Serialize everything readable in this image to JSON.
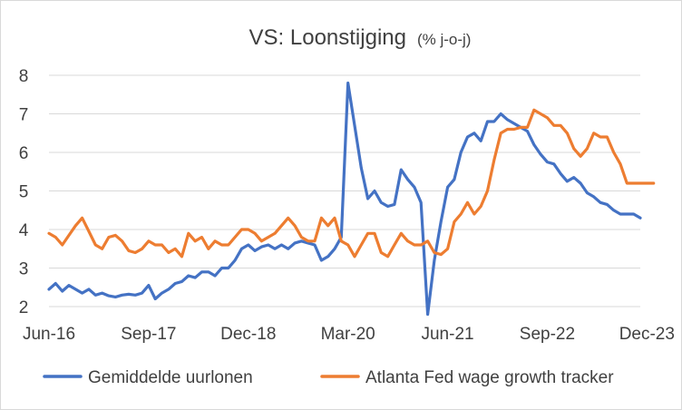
{
  "chart_data": {
    "type": "line",
    "title": "VS: Loonstijging",
    "subtitle": "(% j-o-j)",
    "xlabel": "",
    "ylabel": "",
    "ylim": [
      2,
      8
    ],
    "yticks": [
      "2",
      "3",
      "4",
      "5",
      "6",
      "7",
      "8"
    ],
    "grid": "horizontal",
    "legend_position": "bottom",
    "xtick_labels": [
      "Jun-16",
      "Sep-17",
      "Dec-18",
      "Mar-20",
      "Jun-21",
      "Sep-22",
      "Dec-23"
    ],
    "xtick_indices": [
      0,
      15,
      30,
      45,
      60,
      75,
      90
    ],
    "series": [
      {
        "name": "Gemiddelde uurlonen",
        "color": "#4472C4",
        "values": [
          2.45,
          2.6,
          2.4,
          2.55,
          2.45,
          2.35,
          2.45,
          2.3,
          2.35,
          2.28,
          2.25,
          2.3,
          2.32,
          2.3,
          2.35,
          2.55,
          2.2,
          2.35,
          2.45,
          2.6,
          2.65,
          2.8,
          2.75,
          2.9,
          2.9,
          2.8,
          3.0,
          3.0,
          3.2,
          3.5,
          3.6,
          3.45,
          3.55,
          3.6,
          3.5,
          3.6,
          3.5,
          3.65,
          3.7,
          3.65,
          3.6,
          3.2,
          3.3,
          3.5,
          3.8,
          7.8,
          6.7,
          5.6,
          4.8,
          5.0,
          4.7,
          4.6,
          4.65,
          5.55,
          5.3,
          5.1,
          4.7,
          1.8,
          3.2,
          4.2,
          5.1,
          5.3,
          6.0,
          6.4,
          6.5,
          6.3,
          6.8,
          6.8,
          7.0,
          6.85,
          6.75,
          6.65,
          6.55,
          6.2,
          5.95,
          5.75,
          5.7,
          5.45,
          5.25,
          5.35,
          5.2,
          4.95,
          4.85,
          4.7,
          4.65,
          4.5,
          4.4,
          4.4,
          4.4,
          4.3
        ]
      },
      {
        "name": "Atlanta Fed wage growth tracker",
        "color": "#ED7D31",
        "values": [
          3.9,
          3.8,
          3.6,
          3.85,
          4.1,
          4.3,
          3.95,
          3.6,
          3.5,
          3.8,
          3.85,
          3.7,
          3.45,
          3.4,
          3.5,
          3.7,
          3.6,
          3.6,
          3.4,
          3.5,
          3.3,
          3.9,
          3.7,
          3.8,
          3.5,
          3.7,
          3.6,
          3.6,
          3.8,
          4.0,
          4.0,
          3.9,
          3.7,
          3.8,
          3.9,
          4.1,
          4.3,
          4.1,
          3.8,
          3.7,
          3.7,
          4.3,
          4.1,
          4.3,
          3.7,
          3.6,
          3.3,
          3.6,
          3.9,
          3.9,
          3.4,
          3.3,
          3.6,
          3.9,
          3.7,
          3.6,
          3.6,
          3.7,
          3.4,
          3.35,
          3.5,
          4.2,
          4.4,
          4.7,
          4.4,
          4.6,
          5.0,
          5.8,
          6.5,
          6.6,
          6.6,
          6.65,
          6.65,
          7.1,
          7.0,
          6.9,
          6.7,
          6.7,
          6.5,
          6.1,
          5.9,
          6.1,
          6.5,
          6.4,
          6.4,
          6.0,
          5.7,
          5.2,
          5.2,
          5.2,
          5.2,
          5.2
        ]
      }
    ]
  }
}
